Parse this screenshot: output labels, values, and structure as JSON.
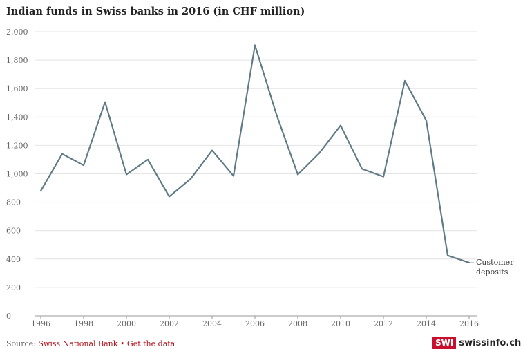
{
  "chart_data": {
    "type": "line",
    "title": "Indian funds in Swiss banks in 2016 (in CHF million)",
    "xlabel": "",
    "ylabel": "",
    "x": [
      1996,
      1997,
      1998,
      1999,
      2000,
      2001,
      2002,
      2003,
      2004,
      2005,
      2006,
      2007,
      2008,
      2009,
      2010,
      2011,
      2012,
      2013,
      2014,
      2015,
      2016
    ],
    "series": [
      {
        "name": "Customer deposits",
        "color": "#607b87",
        "values": [
          880,
          1140,
          1060,
          1505,
          995,
          1100,
          840,
          965,
          1165,
          985,
          1905,
          1420,
          995,
          1145,
          1340,
          1035,
          980,
          1655,
          1375,
          425,
          375
        ]
      }
    ],
    "xticks": [
      "1996",
      "1998",
      "2000",
      "2002",
      "2004",
      "2006",
      "2008",
      "2010",
      "2012",
      "2014",
      "2016"
    ],
    "yticks": [
      "0",
      "200",
      "400",
      "600",
      "800",
      "1,000",
      "1,200",
      "1,400",
      "1,600",
      "1,800",
      "2,000"
    ],
    "xlim": [
      1996,
      2016
    ],
    "ylim": [
      0,
      2000
    ],
    "grid": true,
    "series_label_lines": [
      "Customer",
      "deposits"
    ]
  },
  "footer": {
    "source_prefix": "Source: ",
    "source_name": "Swiss National Bank",
    "separator": " • ",
    "get_data": "Get the data"
  },
  "logo": {
    "badge": "SWI",
    "text": "swissinfo.ch",
    "color": "#c8102e"
  }
}
